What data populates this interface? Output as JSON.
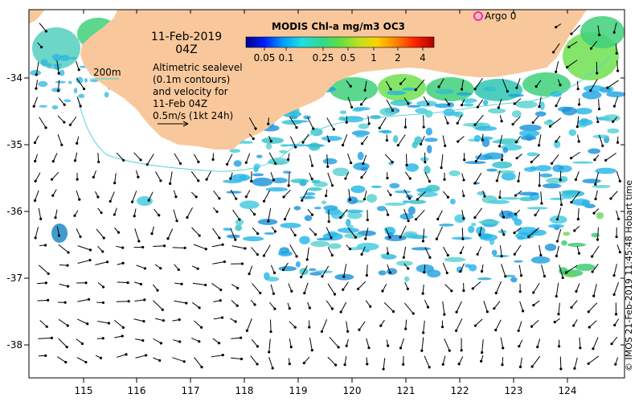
{
  "map": {
    "date_title": "11-Feb-2019",
    "time_title": "04Z",
    "description_lines": [
      "Altimetric sealevel",
      "(0.1m contours)",
      "and velocity for",
      "11-Feb 04Z",
      "0.5m/s (1kt 24h)"
    ],
    "isobath_label": "200m",
    "argo_label": "Argo 0",
    "credit": "© IMOS 21-Feb-2019 11:45:48 Hobart time",
    "lon_ticks": [
      "115",
      "116",
      "117",
      "118",
      "119",
      "120",
      "121",
      "122",
      "123",
      "124"
    ],
    "lat_ticks": [
      "-34",
      "-35",
      "-36",
      "-37",
      "-38"
    ],
    "colors": {
      "land": "#f8c89c",
      "isobath": "#5ad6d6",
      "argo_marker": "#ff1fd0",
      "arrow": "#000000"
    }
  },
  "colorbar": {
    "title": "MODIS Chl-a mg/m3 OC3",
    "tick_labels": [
      "0.05",
      "0.1",
      "0.25",
      "0.5",
      "1",
      "2",
      "4"
    ],
    "colors": [
      "#00008f",
      "#0020ff",
      "#00a0ff",
      "#20e0e0",
      "#30d890",
      "#60e040",
      "#c0e020",
      "#ffd000",
      "#ff8000",
      "#ff2000",
      "#b00000"
    ]
  }
}
